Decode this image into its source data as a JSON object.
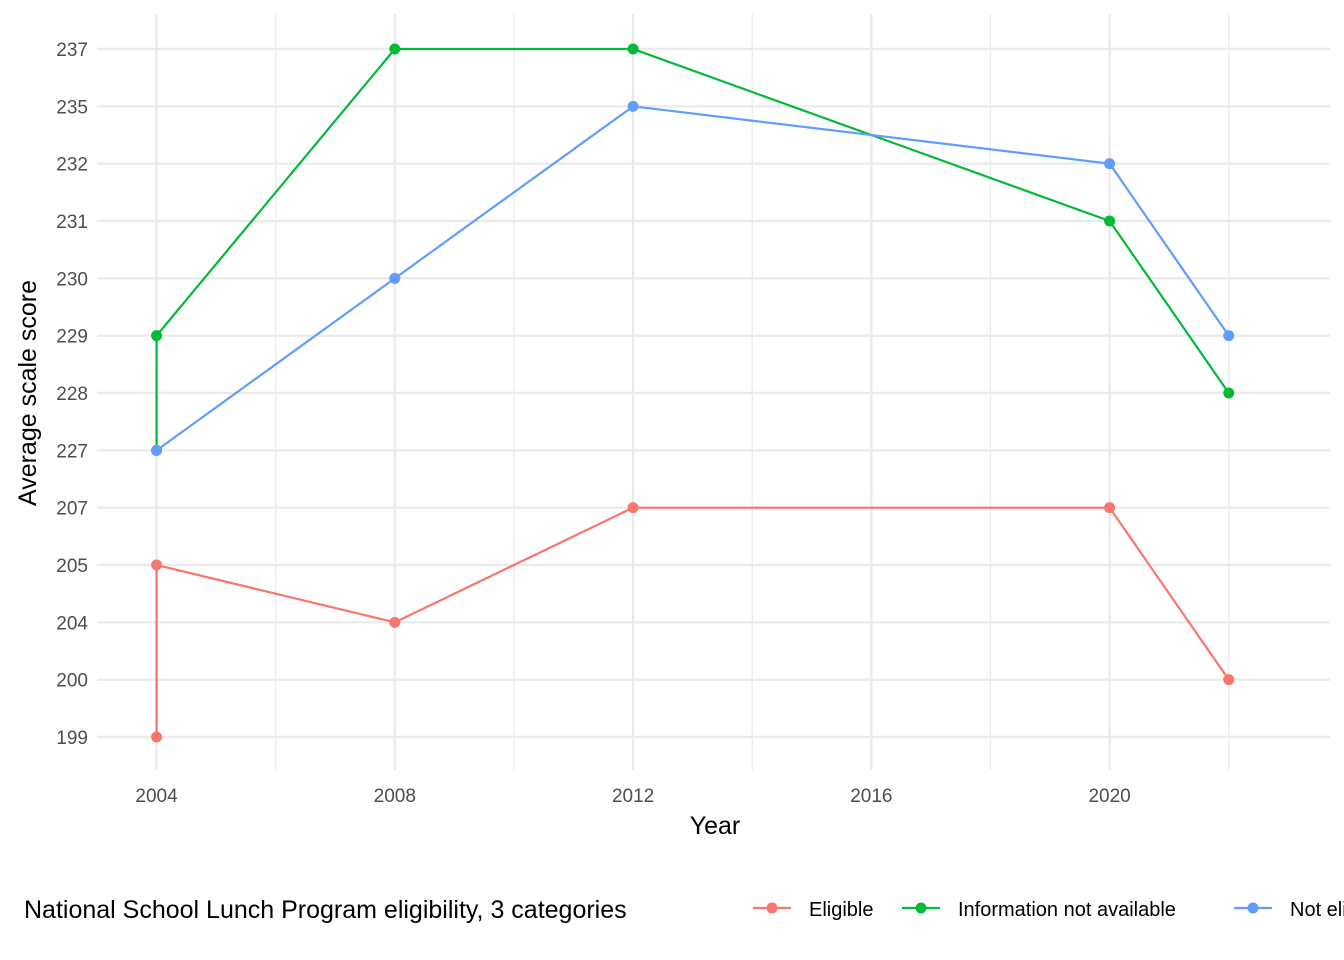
{
  "chart_data": {
    "type": "line",
    "xlabel": "Year",
    "ylabel": "Average scale score",
    "x_ticks": [
      "2004",
      "2008",
      "2012",
      "2016",
      "2020"
    ],
    "y_ticks": [
      "199",
      "200",
      "204",
      "205",
      "207",
      "227",
      "228",
      "229",
      "230",
      "231",
      "232",
      "235",
      "237"
    ],
    "xlim": [
      2003,
      2023.7
    ],
    "grid": true,
    "legend": {
      "title": "National School Lunch Program eligibility, 3 categories",
      "position": "bottom"
    },
    "series": [
      {
        "name": "Eligible",
        "color": "#F8766D",
        "points": [
          {
            "x": 2004,
            "y": "199"
          },
          {
            "x": 2004,
            "y": "205"
          },
          {
            "x": 2008,
            "y": "204"
          },
          {
            "x": 2012,
            "y": "207"
          },
          {
            "x": 2020,
            "y": "207"
          },
          {
            "x": 2022,
            "y": "200"
          }
        ]
      },
      {
        "name": "Information not available",
        "color": "#00BA38",
        "points": [
          {
            "x": 2004,
            "y": "227"
          },
          {
            "x": 2004,
            "y": "229"
          },
          {
            "x": 2008,
            "y": "237"
          },
          {
            "x": 2012,
            "y": "237"
          },
          {
            "x": 2020,
            "y": "231"
          },
          {
            "x": 2022,
            "y": "228"
          }
        ]
      },
      {
        "name": "Not eligible",
        "color": "#619CFF",
        "points": [
          {
            "x": 2004,
            "y": "227"
          },
          {
            "x": 2008,
            "y": "230"
          },
          {
            "x": 2012,
            "y": "235"
          },
          {
            "x": 2020,
            "y": "232"
          },
          {
            "x": 2022,
            "y": "229"
          }
        ]
      }
    ]
  }
}
